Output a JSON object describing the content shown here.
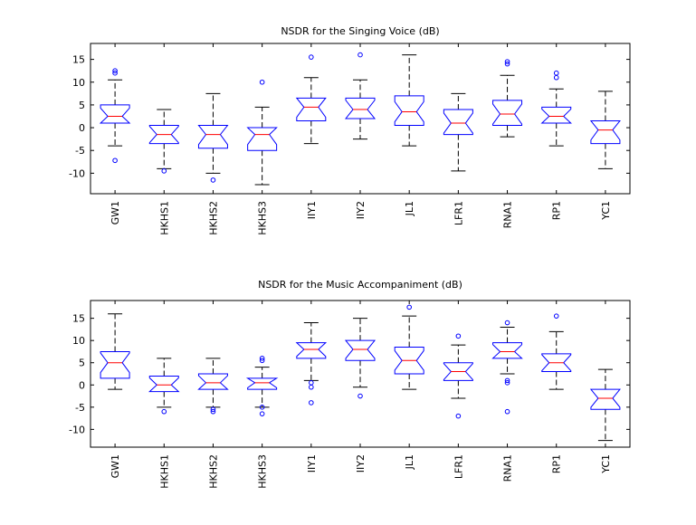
{
  "chart_data": [
    {
      "type": "box",
      "title": "NSDR for the Singing Voice (dB)",
      "xlabel": "",
      "ylabel": "",
      "ylim": [
        -14.5,
        18.5
      ],
      "yticks": [
        -10,
        -5,
        0,
        5,
        10,
        15
      ],
      "notched": true,
      "grid": false,
      "categories": [
        "GW1",
        "HKHS1",
        "HKHS2",
        "HKHS3",
        "IIY1",
        "IIY2",
        "JL1",
        "LFR1",
        "RNA1",
        "RP1",
        "YC1"
      ],
      "boxes": [
        {
          "q1": 1.0,
          "median": 2.5,
          "q3": 5.0,
          "whisker_low": -4.0,
          "whisker_high": 10.5,
          "outliers": [
            12.5,
            12.0,
            -7.2
          ]
        },
        {
          "q1": -3.5,
          "median": -1.5,
          "q3": 0.5,
          "whisker_low": -9.0,
          "whisker_high": 4.0,
          "outliers": [
            -9.5
          ]
        },
        {
          "q1": -4.5,
          "median": -1.5,
          "q3": 0.5,
          "whisker_low": -10.0,
          "whisker_high": 7.5,
          "outliers": [
            -11.5
          ]
        },
        {
          "q1": -5.0,
          "median": -1.5,
          "q3": 0.0,
          "whisker_low": -12.5,
          "whisker_high": 4.5,
          "outliers": [
            10.0
          ]
        },
        {
          "q1": 1.5,
          "median": 4.5,
          "q3": 6.5,
          "whisker_low": -3.5,
          "whisker_high": 11.0,
          "outliers": [
            15.5
          ]
        },
        {
          "q1": 2.0,
          "median": 4.0,
          "q3": 6.5,
          "whisker_low": -2.5,
          "whisker_high": 10.5,
          "outliers": [
            16.0
          ]
        },
        {
          "q1": 0.5,
          "median": 3.5,
          "q3": 7.0,
          "whisker_low": -4.0,
          "whisker_high": 16.0,
          "outliers": []
        },
        {
          "q1": -1.5,
          "median": 1.0,
          "q3": 4.0,
          "whisker_low": -9.5,
          "whisker_high": 7.5,
          "outliers": []
        },
        {
          "q1": 0.5,
          "median": 3.0,
          "q3": 6.0,
          "whisker_low": -2.0,
          "whisker_high": 11.5,
          "outliers": [
            14.5,
            14.0
          ]
        },
        {
          "q1": 1.0,
          "median": 2.5,
          "q3": 4.5,
          "whisker_low": -4.0,
          "whisker_high": 8.5,
          "outliers": [
            12.0,
            11.0
          ]
        },
        {
          "q1": -3.5,
          "median": -0.5,
          "q3": 1.5,
          "whisker_low": -9.0,
          "whisker_high": 8.0,
          "outliers": []
        }
      ]
    },
    {
      "type": "box",
      "title": "NSDR for the Music Accompaniment (dB)",
      "xlabel": "",
      "ylabel": "",
      "ylim": [
        -14,
        19
      ],
      "yticks": [
        -10,
        -5,
        0,
        5,
        10,
        15
      ],
      "notched": true,
      "grid": false,
      "categories": [
        "GW1",
        "HKHS1",
        "HKHS2",
        "HKHS3",
        "IIY1",
        "IIY2",
        "JL1",
        "LFR1",
        "RNA1",
        "RP1",
        "YC1"
      ],
      "boxes": [
        {
          "q1": 1.5,
          "median": 5.0,
          "q3": 7.5,
          "whisker_low": -1.0,
          "whisker_high": 16.0,
          "outliers": []
        },
        {
          "q1": -1.5,
          "median": 0.0,
          "q3": 2.0,
          "whisker_low": -5.0,
          "whisker_high": 6.0,
          "outliers": [
            -6.0
          ]
        },
        {
          "q1": -1.0,
          "median": 0.5,
          "q3": 2.5,
          "whisker_low": -5.0,
          "whisker_high": 6.0,
          "outliers": [
            -5.5,
            -6.0
          ]
        },
        {
          "q1": -1.0,
          "median": 0.5,
          "q3": 1.5,
          "whisker_low": -5.0,
          "whisker_high": 4.0,
          "outliers": [
            6.0,
            5.5,
            -5.0,
            -6.5
          ]
        },
        {
          "q1": 6.0,
          "median": 8.0,
          "q3": 9.5,
          "whisker_low": 1.0,
          "whisker_high": 14.0,
          "outliers": [
            0.5,
            -0.5,
            -4.0
          ]
        },
        {
          "q1": 5.5,
          "median": 8.0,
          "q3": 10.0,
          "whisker_low": -0.5,
          "whisker_high": 15.0,
          "outliers": [
            -2.5
          ]
        },
        {
          "q1": 2.5,
          "median": 5.5,
          "q3": 8.5,
          "whisker_low": -1.0,
          "whisker_high": 15.5,
          "outliers": [
            17.5
          ]
        },
        {
          "q1": 1.0,
          "median": 3.0,
          "q3": 5.0,
          "whisker_low": -3.0,
          "whisker_high": 9.0,
          "outliers": [
            11.0,
            -7.0
          ]
        },
        {
          "q1": 6.0,
          "median": 7.5,
          "q3": 9.5,
          "whisker_low": 2.5,
          "whisker_high": 13.0,
          "outliers": [
            14.0,
            1.0,
            0.5,
            -6.0
          ]
        },
        {
          "q1": 3.0,
          "median": 5.0,
          "q3": 7.0,
          "whisker_low": -1.0,
          "whisker_high": 12.0,
          "outliers": [
            15.5
          ]
        },
        {
          "q1": -5.5,
          "median": -3.0,
          "q3": -1.0,
          "whisker_low": -12.5,
          "whisker_high": 3.5,
          "outliers": []
        }
      ]
    }
  ],
  "colors": {
    "box": "#0000ff",
    "median": "#ff0000",
    "whisker": "#000000",
    "outlier": "#0000ff",
    "axes": "#000000"
  }
}
